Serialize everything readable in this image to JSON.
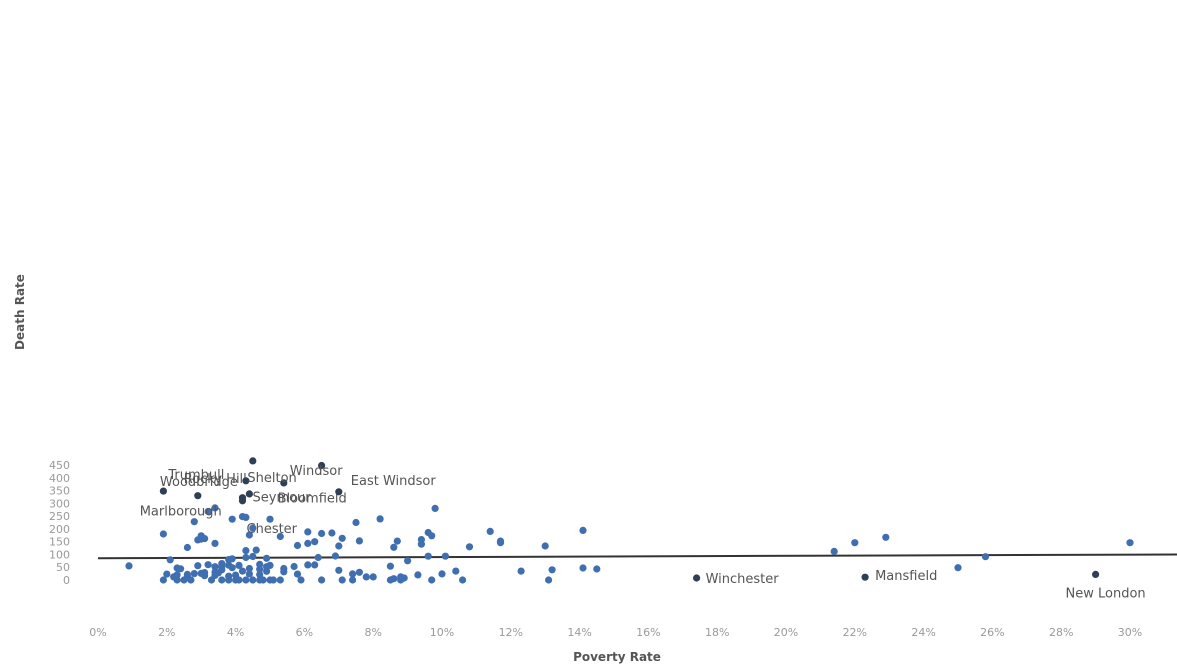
{
  "chart_data": {
    "type": "scatter",
    "xlabel": "Poverty Rate",
    "ylabel": "Death Rate",
    "xlim": [
      0,
      30
    ],
    "ylim": [
      0,
      450
    ],
    "x_ticks": [
      0,
      2,
      4,
      6,
      8,
      10,
      12,
      14,
      16,
      18,
      20,
      22,
      24,
      26,
      28,
      30
    ],
    "x_tick_labels": [
      "0%",
      "2%",
      "4%",
      "6%",
      "8%",
      "10%",
      "12%",
      "14%",
      "16%",
      "18%",
      "20%",
      "22%",
      "24%",
      "26%",
      "28%",
      "30%"
    ],
    "y_ticks": [
      0,
      50,
      100,
      150,
      200,
      250,
      300,
      350,
      400,
      450
    ],
    "y_tick_labels": [
      "0",
      "50",
      "100",
      "150",
      "200",
      "250",
      "300",
      "350",
      "400",
      "450"
    ],
    "grid": false,
    "colors": {
      "points": "#3f6fb0",
      "labeled_points": "#2f3f55",
      "trend": "#333333"
    },
    "trend_line": {
      "x": [
        0,
        31.5
      ],
      "y": [
        85,
        100
      ]
    },
    "labeled_points": [
      {
        "name": "Rocky Hill",
        "x": 4.5,
        "y": 466
      },
      {
        "name": "Bloomfield",
        "x": 6.5,
        "y": 448
      },
      {
        "name": "Woodbridge",
        "x": 4.3,
        "y": 388
      },
      {
        "name": "Windsor",
        "x": 5.4,
        "y": 380
      },
      {
        "name": "Trumbull",
        "x": 1.9,
        "y": 348
      },
      {
        "name": "East Windsor",
        "x": 7.0,
        "y": 345
      },
      {
        "name": "Shelton",
        "x": 4.4,
        "y": 337
      },
      {
        "name": "Marlborough",
        "x": 2.9,
        "y": 330
      },
      {
        "name": "Seymour",
        "x": 4.2,
        "y": 322
      },
      {
        "name": "Chester",
        "x": 4.2,
        "y": 310
      },
      {
        "name": "Winchester",
        "x": 17.4,
        "y": 8
      },
      {
        "name": "Mansfield",
        "x": 22.3,
        "y": 11
      },
      {
        "name": "New London",
        "x": 29.0,
        "y": 22
      }
    ],
    "points": [
      {
        "x": 3.4,
        "y": 282
      },
      {
        "x": 3.2,
        "y": 268
      },
      {
        "x": 9.8,
        "y": 280
      },
      {
        "x": 4.2,
        "y": 248
      },
      {
        "x": 4.3,
        "y": 245
      },
      {
        "x": 3.9,
        "y": 238
      },
      {
        "x": 5.0,
        "y": 238
      },
      {
        "x": 8.2,
        "y": 239
      },
      {
        "x": 2.8,
        "y": 228
      },
      {
        "x": 7.5,
        "y": 225
      },
      {
        "x": 4.5,
        "y": 203
      },
      {
        "x": 6.1,
        "y": 188
      },
      {
        "x": 6.5,
        "y": 182
      },
      {
        "x": 6.8,
        "y": 184
      },
      {
        "x": 9.6,
        "y": 186
      },
      {
        "x": 11.4,
        "y": 190
      },
      {
        "x": 14.1,
        "y": 194
      },
      {
        "x": 1.9,
        "y": 180
      },
      {
        "x": 4.4,
        "y": 176
      },
      {
        "x": 3.0,
        "y": 173
      },
      {
        "x": 9.7,
        "y": 173
      },
      {
        "x": 5.3,
        "y": 170
      },
      {
        "x": 7.1,
        "y": 163
      },
      {
        "x": 3.0,
        "y": 160
      },
      {
        "x": 3.1,
        "y": 162
      },
      {
        "x": 2.9,
        "y": 157
      },
      {
        "x": 7.6,
        "y": 153
      },
      {
        "x": 8.7,
        "y": 152
      },
      {
        "x": 9.4,
        "y": 158
      },
      {
        "x": 6.3,
        "y": 150
      },
      {
        "x": 11.7,
        "y": 152
      },
      {
        "x": 11.7,
        "y": 146
      },
      {
        "x": 3.4,
        "y": 143
      },
      {
        "x": 6.1,
        "y": 143
      },
      {
        "x": 9.4,
        "y": 140
      },
      {
        "x": 5.8,
        "y": 135
      },
      {
        "x": 7.0,
        "y": 133
      },
      {
        "x": 10.8,
        "y": 130
      },
      {
        "x": 13.0,
        "y": 133
      },
      {
        "x": 2.6,
        "y": 127
      },
      {
        "x": 8.6,
        "y": 128
      },
      {
        "x": 4.3,
        "y": 115
      },
      {
        "x": 4.6,
        "y": 117
      },
      {
        "x": 4.5,
        "y": 92
      },
      {
        "x": 4.3,
        "y": 88
      },
      {
        "x": 4.9,
        "y": 85
      },
      {
        "x": 6.4,
        "y": 88
      },
      {
        "x": 6.9,
        "y": 94
      },
      {
        "x": 9.6,
        "y": 93
      },
      {
        "x": 10.1,
        "y": 93
      },
      {
        "x": 3.9,
        "y": 83
      },
      {
        "x": 3.8,
        "y": 80
      },
      {
        "x": 2.1,
        "y": 79
      },
      {
        "x": 9.0,
        "y": 75
      },
      {
        "x": 3.6,
        "y": 64
      },
      {
        "x": 3.2,
        "y": 60
      },
      {
        "x": 3.8,
        "y": 58
      },
      {
        "x": 4.1,
        "y": 57
      },
      {
        "x": 4.7,
        "y": 61
      },
      {
        "x": 5.0,
        "y": 57
      },
      {
        "x": 6.1,
        "y": 59
      },
      {
        "x": 6.3,
        "y": 59
      },
      {
        "x": 3.6,
        "y": 53
      },
      {
        "x": 4.9,
        "y": 52
      },
      {
        "x": 5.7,
        "y": 53
      },
      {
        "x": 8.5,
        "y": 54
      },
      {
        "x": 0.9,
        "y": 55
      },
      {
        "x": 2.9,
        "y": 56
      },
      {
        "x": 3.4,
        "y": 52
      },
      {
        "x": 3.9,
        "y": 48
      },
      {
        "x": 4.4,
        "y": 45
      },
      {
        "x": 4.7,
        "y": 42
      },
      {
        "x": 5.4,
        "y": 45
      },
      {
        "x": 2.3,
        "y": 47
      },
      {
        "x": 2.4,
        "y": 44
      },
      {
        "x": 3.6,
        "y": 40
      },
      {
        "x": 7.0,
        "y": 38
      },
      {
        "x": 14.1,
        "y": 47
      },
      {
        "x": 14.5,
        "y": 43
      },
      {
        "x": 13.2,
        "y": 40
      },
      {
        "x": 4.2,
        "y": 35
      },
      {
        "x": 4.9,
        "y": 34
      },
      {
        "x": 5.4,
        "y": 32
      },
      {
        "x": 7.6,
        "y": 30
      },
      {
        "x": 10.4,
        "y": 35
      },
      {
        "x": 12.3,
        "y": 35
      },
      {
        "x": 3.4,
        "y": 31
      },
      {
        "x": 3.5,
        "y": 28
      },
      {
        "x": 3.0,
        "y": 26
      },
      {
        "x": 3.1,
        "y": 29
      },
      {
        "x": 2.8,
        "y": 25
      },
      {
        "x": 2.6,
        "y": 22
      },
      {
        "x": 2.3,
        "y": 20
      },
      {
        "x": 2.0,
        "y": 23
      },
      {
        "x": 4.4,
        "y": 24
      },
      {
        "x": 4.7,
        "y": 21
      },
      {
        "x": 5.8,
        "y": 23
      },
      {
        "x": 7.4,
        "y": 24
      },
      {
        "x": 10.0,
        "y": 24
      },
      {
        "x": 9.3,
        "y": 20
      },
      {
        "x": 3.4,
        "y": 18
      },
      {
        "x": 3.1,
        "y": 17
      },
      {
        "x": 4.0,
        "y": 19
      },
      {
        "x": 7.8,
        "y": 12
      },
      {
        "x": 8.0,
        "y": 12
      },
      {
        "x": 8.8,
        "y": 12
      },
      {
        "x": 2.2,
        "y": 12
      },
      {
        "x": 2.6,
        "y": 13
      },
      {
        "x": 3.8,
        "y": 15
      },
      {
        "x": 8.9,
        "y": 8
      },
      {
        "x": 8.6,
        "y": 5
      },
      {
        "x": 1.9,
        "y": 0
      },
      {
        "x": 2.3,
        "y": 0
      },
      {
        "x": 2.5,
        "y": 0
      },
      {
        "x": 2.7,
        "y": 0
      },
      {
        "x": 3.3,
        "y": 0
      },
      {
        "x": 3.6,
        "y": 0
      },
      {
        "x": 3.8,
        "y": 0
      },
      {
        "x": 4.0,
        "y": 0
      },
      {
        "x": 4.1,
        "y": 0
      },
      {
        "x": 4.3,
        "y": 0
      },
      {
        "x": 4.5,
        "y": 0
      },
      {
        "x": 4.7,
        "y": 0
      },
      {
        "x": 4.8,
        "y": 0
      },
      {
        "x": 5.0,
        "y": 0
      },
      {
        "x": 5.1,
        "y": 0
      },
      {
        "x": 5.3,
        "y": 0
      },
      {
        "x": 5.9,
        "y": 0
      },
      {
        "x": 6.5,
        "y": 0
      },
      {
        "x": 7.1,
        "y": 0
      },
      {
        "x": 7.4,
        "y": 0
      },
      {
        "x": 8.5,
        "y": 0
      },
      {
        "x": 8.8,
        "y": 0
      },
      {
        "x": 9.7,
        "y": 0
      },
      {
        "x": 10.6,
        "y": 0
      },
      {
        "x": 13.1,
        "y": 0
      },
      {
        "x": 21.4,
        "y": 112
      },
      {
        "x": 22.0,
        "y": 146
      },
      {
        "x": 22.9,
        "y": 167
      },
      {
        "x": 25.0,
        "y": 48
      },
      {
        "x": 25.8,
        "y": 91
      },
      {
        "x": 30.0,
        "y": 146
      }
    ]
  }
}
